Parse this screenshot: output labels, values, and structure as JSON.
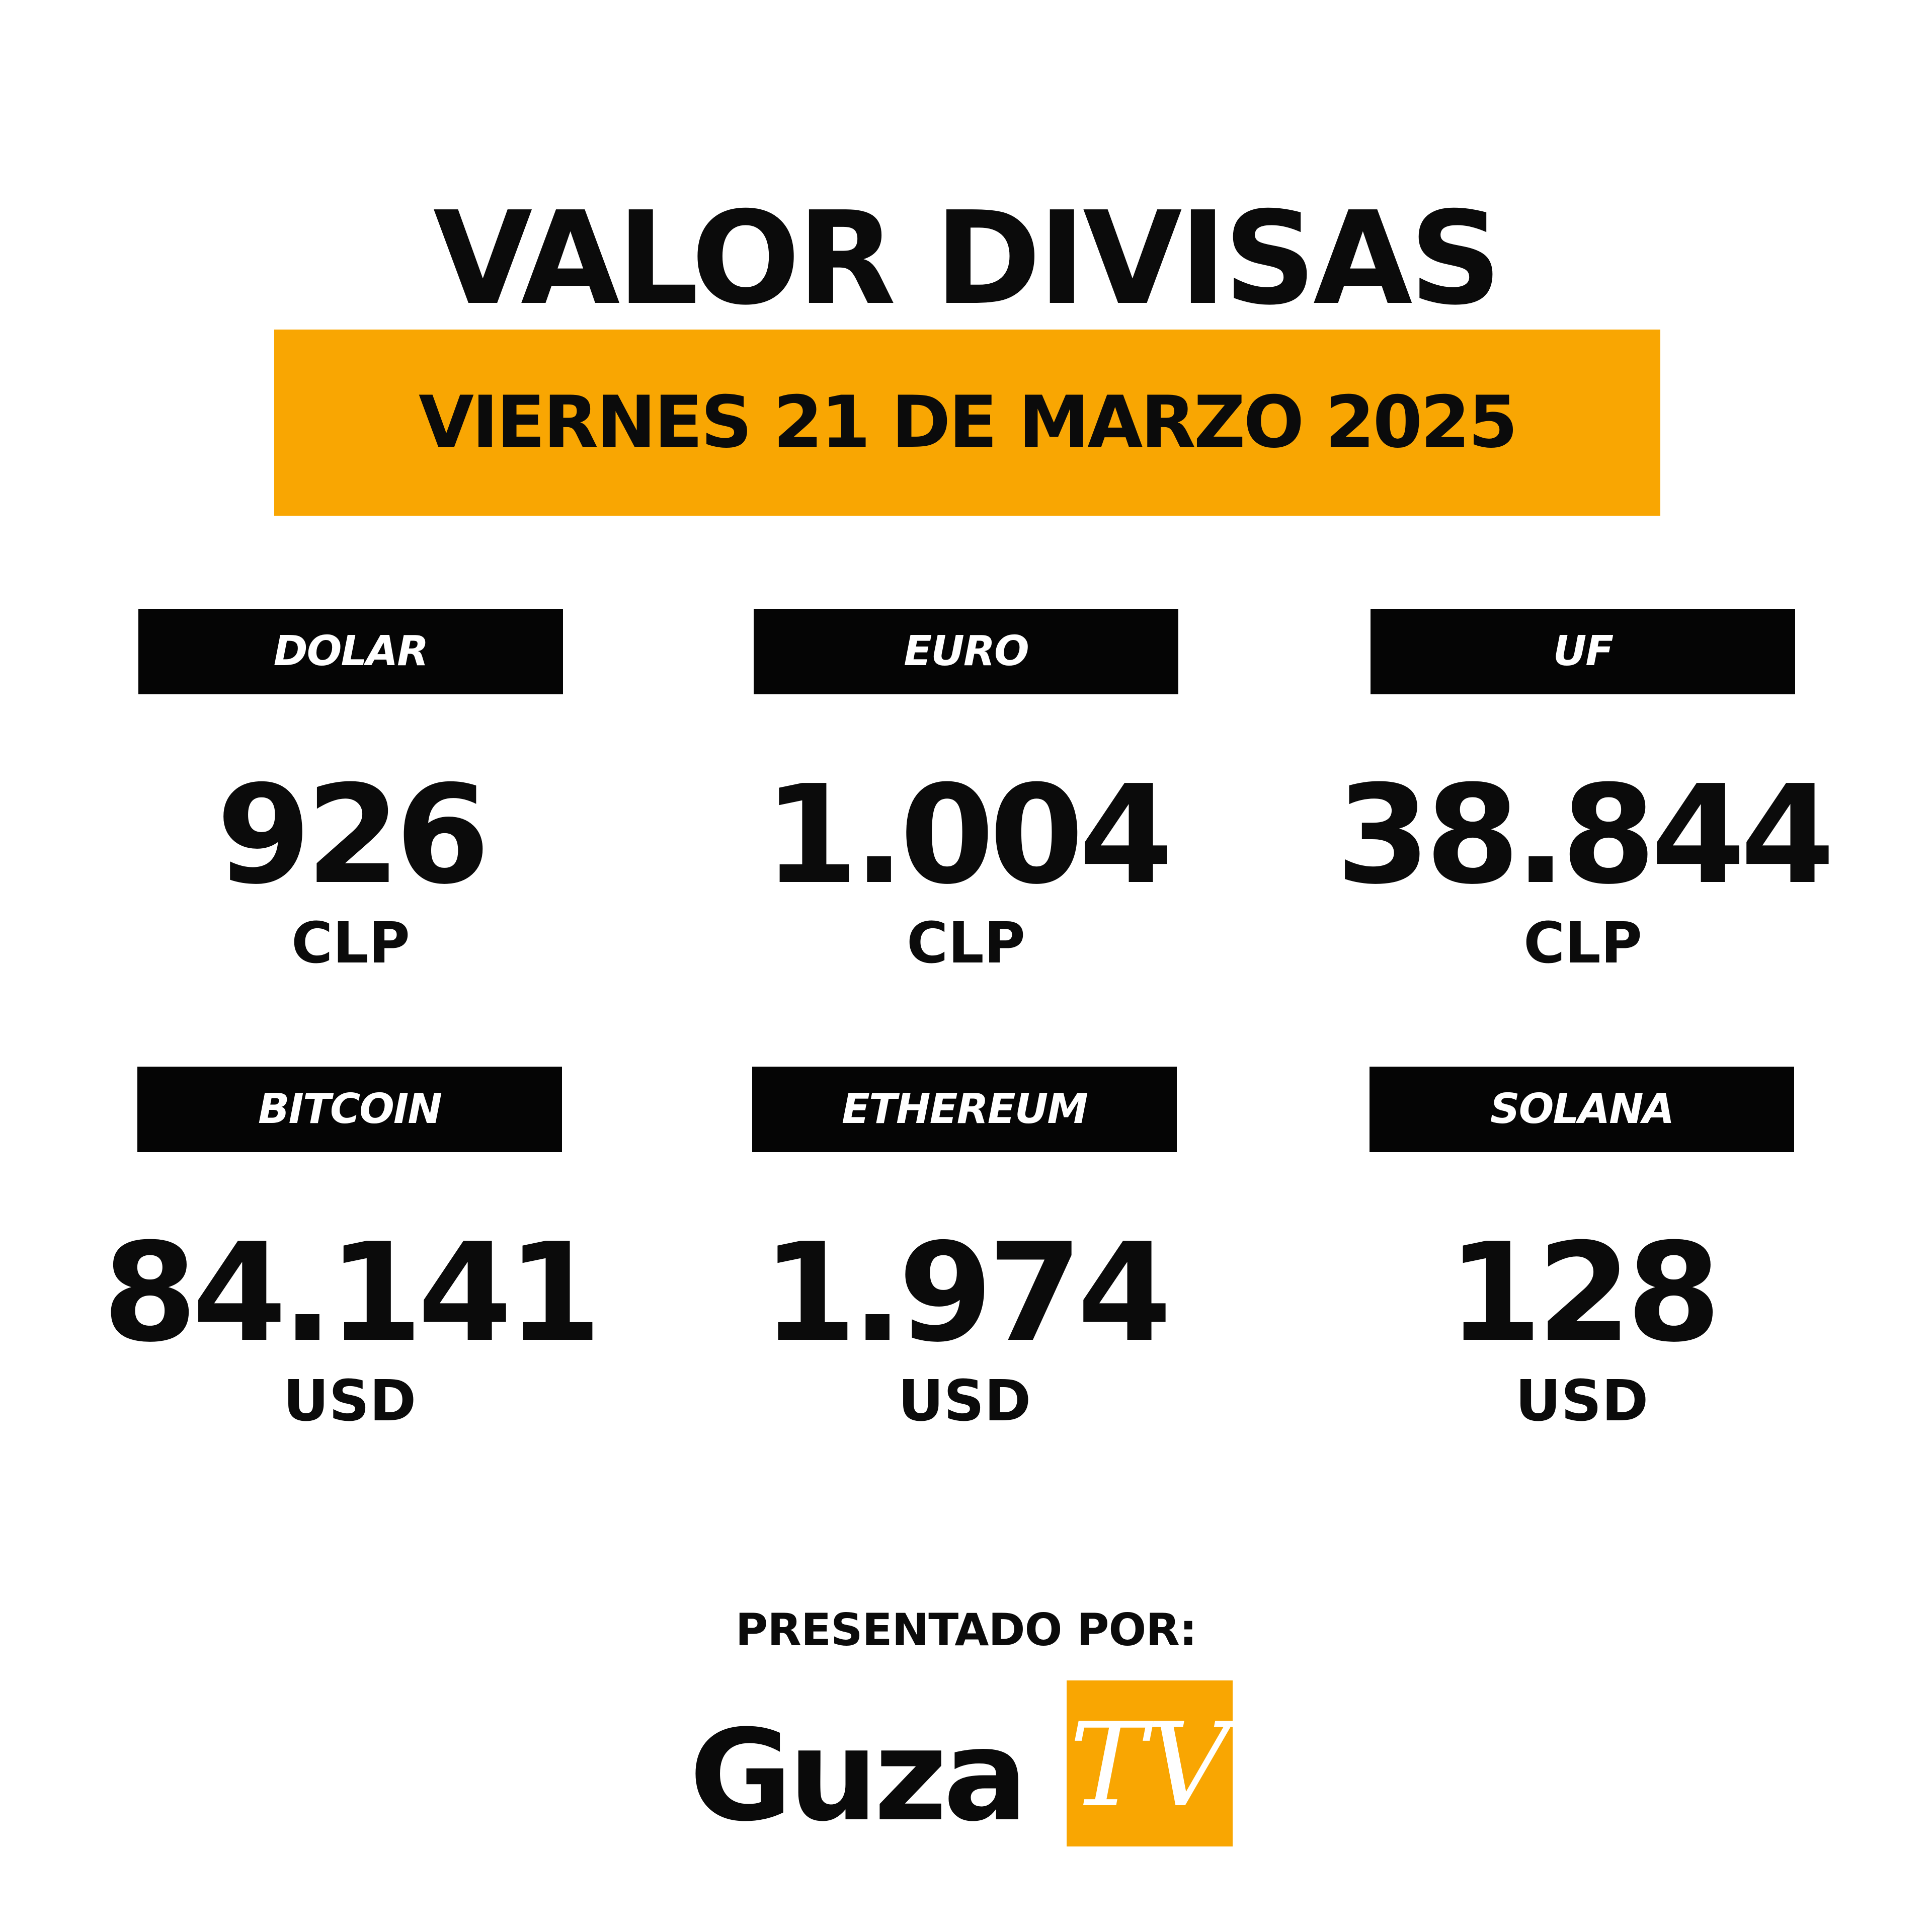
{
  "title": "VALOR DIVISAS",
  "date": "VIERNES 21 DE MARZO 2025",
  "cards": [
    {
      "name": "DOLAR",
      "value": "926",
      "unit": "CLP"
    },
    {
      "name": "EURO",
      "value": "1.004",
      "unit": "CLP"
    },
    {
      "name": "UF",
      "value": "38.844",
      "unit": "CLP"
    },
    {
      "name": "BITCOIN",
      "value": "84.141",
      "unit": "USD"
    },
    {
      "name": "ETHEREUM",
      "value": "1.974",
      "unit": "USD"
    },
    {
      "name": "SOLANA",
      "value": "128",
      "unit": "USD"
    }
  ],
  "footer": {
    "presented_by": "PRESENTADO POR:",
    "logo_text": "Guza",
    "logo_box_text": "TV"
  },
  "colors": {
    "accent": "#f9a602",
    "header_bg": "#050505",
    "text": "#0b0b0b"
  }
}
